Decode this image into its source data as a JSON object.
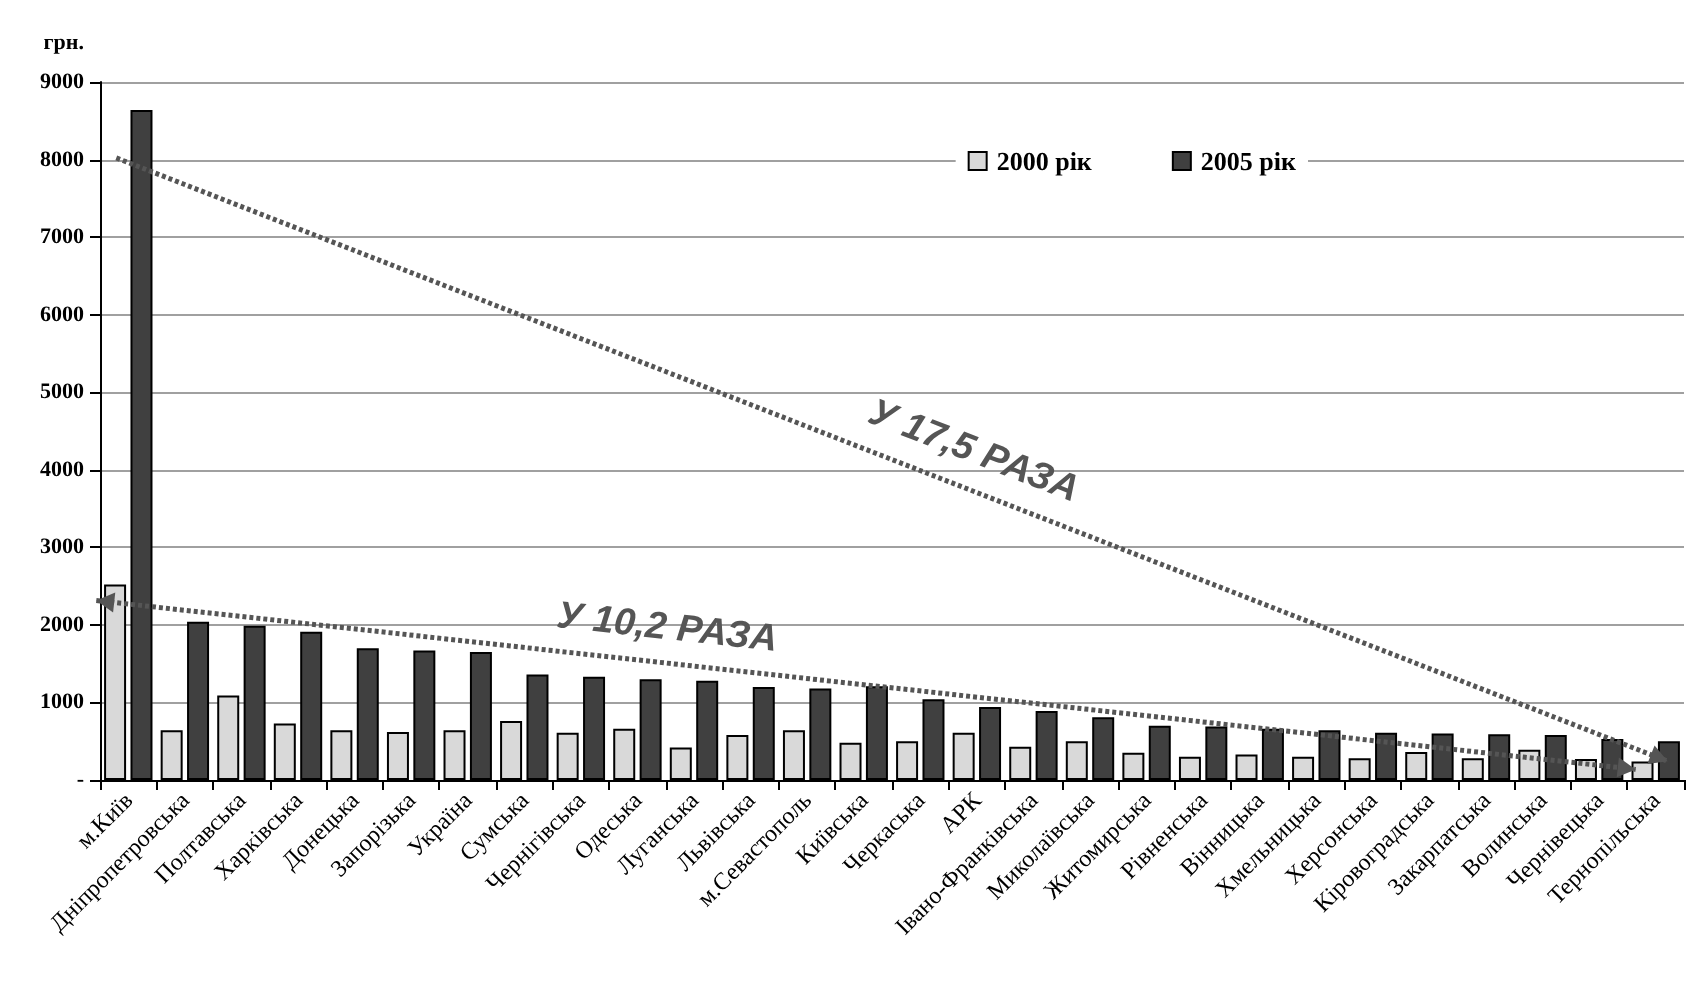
{
  "chart_data": {
    "type": "bar",
    "ylabel": "грн.",
    "categories": [
      "м.Київ",
      "Дніпропетровська",
      "Полтавська",
      "Харківська",
      "Донецька",
      "Запорізька",
      "Україна",
      "Сумська",
      "Чернігівська",
      "Одеська",
      "Луганська",
      "Львівська",
      "м.Севастополь",
      "Київська",
      "Черкаська",
      "АРК",
      "Івано-Франківська",
      "Миколаївська",
      "Житомирська",
      "Рівненська",
      "Вінницька",
      "Хмельницька",
      "Херсонська",
      "Кіровоградська",
      "Закарпатська",
      "Волинська",
      "Чернівецька",
      "Тернопільська"
    ],
    "series": [
      {
        "name": "2000 рік",
        "color": "#d9d9d9",
        "values": [
          2520,
          640,
          1090,
          730,
          640,
          620,
          640,
          760,
          610,
          660,
          420,
          580,
          640,
          480,
          500,
          610,
          430,
          500,
          350,
          300,
          330,
          300,
          280,
          360,
          280,
          390,
          270,
          240
        ]
      },
      {
        "name": "2005 рік",
        "color": "#404040",
        "values": [
          8640,
          2040,
          1990,
          1910,
          1700,
          1670,
          1650,
          1360,
          1330,
          1300,
          1280,
          1200,
          1180,
          1210,
          1040,
          940,
          890,
          810,
          700,
          690,
          660,
          640,
          610,
          600,
          590,
          580,
          530,
          500
        ]
      }
    ],
    "ylim": [
      0,
      9000
    ],
    "yticks": [
      {
        "value": 0,
        "label": "-"
      },
      1000,
      2000,
      3000,
      4000,
      5000,
      6000,
      7000,
      8000,
      9000
    ],
    "grid": "y",
    "legend": "top right",
    "annotations": [
      "У 17,5 РАЗА",
      "У 10,2 РАЗА"
    ]
  }
}
